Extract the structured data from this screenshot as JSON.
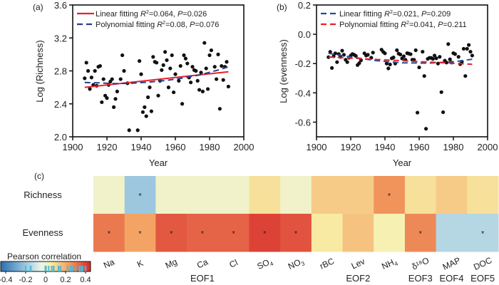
{
  "chart_data": [
    {
      "type": "scatter",
      "panel_label": "(a)",
      "xlabel": "Year",
      "ylabel": "Log (Richness)",
      "xlim": [
        1900,
        2000
      ],
      "ylim": [
        2.0,
        3.6
      ],
      "xticks": [
        1900,
        1920,
        1940,
        1960,
        1980,
        2000
      ],
      "yticks": [
        2.0,
        2.4,
        2.8,
        3.2,
        3.6
      ],
      "ytick_labels": [
        "2.0",
        "2.4",
        "2.8",
        "3.2",
        "3.6"
      ],
      "legend": [
        {
          "name": "Linear fitting",
          "stats": "=0.064, ",
          "p": "=0.026",
          "color": "#e8202a",
          "style": "solid"
        },
        {
          "name": "Polynomial fitting",
          "stats": "=0.08, ",
          "p": "=0.076",
          "color": "#1f3f8f",
          "style": "dashed"
        }
      ],
      "points": [
        [
          1907,
          2.71
        ],
        [
          1908,
          2.9
        ],
        [
          1909,
          2.8
        ],
        [
          1910,
          2.58
        ],
        [
          1911,
          2.72
        ],
        [
          1912,
          2.63
        ],
        [
          1913,
          2.8
        ],
        [
          1914,
          2.62
        ],
        [
          1915,
          2.85
        ],
        [
          1916,
          2.86
        ],
        [
          1917,
          2.42
        ],
        [
          1918,
          2.7
        ],
        [
          1919,
          2.5
        ],
        [
          1920,
          2.47
        ],
        [
          1921,
          2.63
        ],
        [
          1922,
          2.67
        ],
        [
          1923,
          2.7
        ],
        [
          1924,
          2.36
        ],
        [
          1925,
          2.46
        ],
        [
          1926,
          2.55
        ],
        [
          1928,
          2.7
        ],
        [
          1929,
          2.99
        ],
        [
          1930,
          2.8
        ],
        [
          1932,
          2.65
        ],
        [
          1933,
          2.08
        ],
        [
          1938,
          2.08
        ],
        [
          1939,
          2.92
        ],
        [
          1940,
          2.76
        ],
        [
          1941,
          2.3
        ],
        [
          1942,
          2.36
        ],
        [
          1943,
          2.25
        ],
        [
          1944,
          2.48
        ],
        [
          1945,
          2.6
        ],
        [
          1946,
          2.31
        ],
        [
          1947,
          2.97
        ],
        [
          1948,
          2.91
        ],
        [
          1949,
          2.9
        ],
        [
          1950,
          2.5
        ],
        [
          1951,
          2.68
        ],
        [
          1952,
          2.81
        ],
        [
          1953,
          2.87
        ],
        [
          1954,
          3.03
        ],
        [
          1955,
          2.93
        ],
        [
          1956,
          2.6
        ],
        [
          1957,
          2.83
        ],
        [
          1958,
          2.99
        ],
        [
          1959,
          2.54
        ],
        [
          1960,
          2.76
        ],
        [
          1962,
          2.68
        ],
        [
          1963,
          2.86
        ],
        [
          1964,
          2.4
        ],
        [
          1965,
          2.99
        ],
        [
          1966,
          2.95
        ],
        [
          1967,
          2.89
        ],
        [
          1968,
          2.72
        ],
        [
          1969,
          2.66
        ],
        [
          1970,
          2.85
        ],
        [
          1971,
          2.81
        ],
        [
          1972,
          2.8
        ],
        [
          1973,
          2.68
        ],
        [
          1974,
          2.57
        ],
        [
          1975,
          2.78
        ],
        [
          1976,
          2.55
        ],
        [
          1977,
          3.14
        ],
        [
          1978,
          2.83
        ],
        [
          1979,
          2.58
        ],
        [
          1980,
          2.99
        ],
        [
          1981,
          3.05
        ],
        [
          1983,
          2.85
        ],
        [
          1984,
          2.7
        ],
        [
          1985,
          3.0
        ],
        [
          1986,
          2.34
        ],
        [
          1987,
          2.86
        ],
        [
          1988,
          2.69
        ],
        [
          1989,
          2.85
        ],
        [
          1990,
          2.91
        ],
        [
          1991,
          2.61
        ]
      ],
      "fit_linear": [
        [
          1907,
          2.6
        ],
        [
          1991,
          2.79
        ]
      ],
      "fit_poly": [
        [
          1907,
          2.66
        ],
        [
          1915,
          2.655
        ],
        [
          1925,
          2.645
        ],
        [
          1935,
          2.65
        ],
        [
          1945,
          2.665
        ],
        [
          1955,
          2.685
        ],
        [
          1965,
          2.715
        ],
        [
          1975,
          2.755
        ],
        [
          1985,
          2.81
        ],
        [
          1991,
          2.85
        ]
      ]
    },
    {
      "type": "scatter",
      "panel_label": "(b)",
      "xlabel": "Year",
      "ylabel": "Log (evenness)",
      "xlim": [
        1900,
        2000
      ],
      "ylim": [
        -0.7,
        0.2
      ],
      "xticks": [
        1900,
        1920,
        1940,
        1960,
        1980,
        2000
      ],
      "yticks": [
        -0.6,
        -0.4,
        -0.2,
        0.0,
        0.2
      ],
      "ytick_labels": [
        "-0.6",
        "-0.4",
        "-0.2",
        "0.0",
        "0.2"
      ],
      "legend": [
        {
          "name": "Linear fitting",
          "stats": "=0.021, ",
          "p": "=0.209",
          "color": "#1f4f9f",
          "style": "dashed"
        },
        {
          "name": "Polynomial fitting",
          "stats": "=0.041, ",
          "p": "=0.211",
          "color": "#e8202a",
          "style": "dashed"
        }
      ],
      "points": [
        [
          1907,
          -0.156
        ],
        [
          1908,
          -0.12
        ],
        [
          1909,
          -0.23
        ],
        [
          1910,
          -0.15
        ],
        [
          1911,
          -0.13
        ],
        [
          1912,
          -0.19
        ],
        [
          1913,
          -0.135
        ],
        [
          1914,
          -0.155
        ],
        [
          1915,
          -0.112
        ],
        [
          1916,
          -0.14
        ],
        [
          1917,
          -0.174
        ],
        [
          1918,
          -0.19
        ],
        [
          1919,
          -0.16
        ],
        [
          1920,
          -0.145
        ],
        [
          1921,
          -0.135
        ],
        [
          1922,
          -0.14
        ],
        [
          1923,
          -0.148
        ],
        [
          1924,
          -0.21
        ],
        [
          1925,
          -0.197
        ],
        [
          1926,
          -0.177
        ],
        [
          1928,
          -0.13
        ],
        [
          1929,
          -0.145
        ],
        [
          1930,
          -0.14
        ],
        [
          1932,
          -0.16
        ],
        [
          1933,
          -0.125
        ],
        [
          1938,
          -0.105
        ],
        [
          1939,
          -0.12
        ],
        [
          1940,
          -0.13
        ],
        [
          1941,
          -0.2
        ],
        [
          1942,
          -0.233
        ],
        [
          1943,
          -0.206
        ],
        [
          1944,
          -0.164
        ],
        [
          1945,
          -0.158
        ],
        [
          1946,
          -0.2
        ],
        [
          1947,
          -0.109
        ],
        [
          1948,
          -0.132
        ],
        [
          1949,
          -0.138
        ],
        [
          1950,
          -0.165
        ],
        [
          1951,
          -0.15
        ],
        [
          1952,
          -0.174
        ],
        [
          1953,
          -0.129
        ],
        [
          1954,
          -0.132
        ],
        [
          1955,
          -0.136
        ],
        [
          1956,
          -0.174
        ],
        [
          1957,
          -0.174
        ],
        [
          1958,
          -0.109
        ],
        [
          1959,
          -0.535
        ],
        [
          1960,
          -0.226
        ],
        [
          1962,
          -0.119
        ],
        [
          1963,
          -0.285
        ],
        [
          1964,
          -0.645
        ],
        [
          1965,
          -0.168
        ],
        [
          1966,
          -0.161
        ],
        [
          1967,
          -0.161
        ],
        [
          1968,
          -0.168
        ],
        [
          1969,
          -0.145
        ],
        [
          1970,
          -0.164
        ],
        [
          1971,
          -0.2
        ],
        [
          1972,
          -0.154
        ],
        [
          1973,
          -0.395
        ],
        [
          1974,
          -0.532
        ],
        [
          1975,
          -0.18
        ],
        [
          1976,
          -0.193
        ],
        [
          1977,
          -0.067
        ],
        [
          1978,
          -0.171
        ],
        [
          1979,
          -0.193
        ],
        [
          1980,
          -0.129
        ],
        [
          1981,
          -0.135
        ],
        [
          1983,
          -0.154
        ],
        [
          1984,
          -0.204
        ],
        [
          1985,
          -0.187
        ],
        [
          1986,
          -0.099
        ],
        [
          1987,
          -0.285
        ],
        [
          1988,
          -0.099
        ],
        [
          1989,
          -0.073
        ],
        [
          1990,
          -0.119
        ],
        [
          1991,
          -0.145
        ]
      ],
      "fit_linear": [
        [
          1907,
          -0.13
        ],
        [
          1920,
          -0.155
        ],
        [
          1935,
          -0.18
        ],
        [
          1950,
          -0.195
        ],
        [
          1965,
          -0.197
        ],
        [
          1980,
          -0.188
        ],
        [
          1991,
          -0.17
        ]
      ],
      "fit_poly": [
        [
          1907,
          -0.155
        ],
        [
          1991,
          -0.205
        ]
      ]
    },
    {
      "type": "heatmap",
      "panel_label": "(c)",
      "rows": [
        "Richness",
        "Evenness"
      ],
      "columns": [
        {
          "label": "Na",
          "sub": ""
        },
        {
          "label": "K",
          "sub": ""
        },
        {
          "label": "Mg",
          "sub": ""
        },
        {
          "label": "Ca",
          "sub": ""
        },
        {
          "label": "Cl",
          "sub": ""
        },
        {
          "label": "SO",
          "sub": "4"
        },
        {
          "label": "NO",
          "sub": "3"
        },
        {
          "label": "rBC",
          "sub": ""
        },
        {
          "label": "Lev",
          "sub": ""
        },
        {
          "label": "NH",
          "sub": "4"
        },
        {
          "label": "δ¹⁸O",
          "sub": ""
        },
        {
          "label": "MAP",
          "sub": ""
        },
        {
          "label": "DOC",
          "sub": ""
        }
      ],
      "groups": [
        {
          "label": "EOF1",
          "from": 0,
          "to": 6
        },
        {
          "label": "EOF2",
          "from": 8,
          "to": 8
        },
        {
          "label": "EOF3",
          "from": 10,
          "to": 10
        },
        {
          "label": "EOF4",
          "from": 11,
          "to": 11
        },
        {
          "label": "EOF5",
          "from": 12,
          "to": 12
        }
      ],
      "values": [
        [
          0.0,
          -0.2,
          0.0,
          0.0,
          0.0,
          0.08,
          0.0,
          0.13,
          0.13,
          0.25,
          0.08,
          0.13,
          0.08
        ],
        [
          0.3,
          0.22,
          0.36,
          0.34,
          0.34,
          0.4,
          0.37,
          0.06,
          0.15,
          0.03,
          0.27,
          -0.15,
          -0.15
        ]
      ],
      "significant": [
        [
          false,
          true,
          false,
          false,
          false,
          false,
          false,
          false,
          false,
          true,
          false,
          false,
          false
        ],
        [
          true,
          true,
          true,
          true,
          true,
          true,
          true,
          false,
          false,
          false,
          true,
          false,
          true
        ]
      ],
      "colorbar": {
        "title": "Pearson correlation",
        "range": [
          -0.45,
          0.45
        ],
        "ticks": [
          -0.4,
          -0.2,
          0,
          0.2,
          0.4
        ],
        "tick_labels": [
          "-0.4",
          "-0.2",
          "0",
          "0.2",
          "0.4"
        ]
      }
    }
  ]
}
